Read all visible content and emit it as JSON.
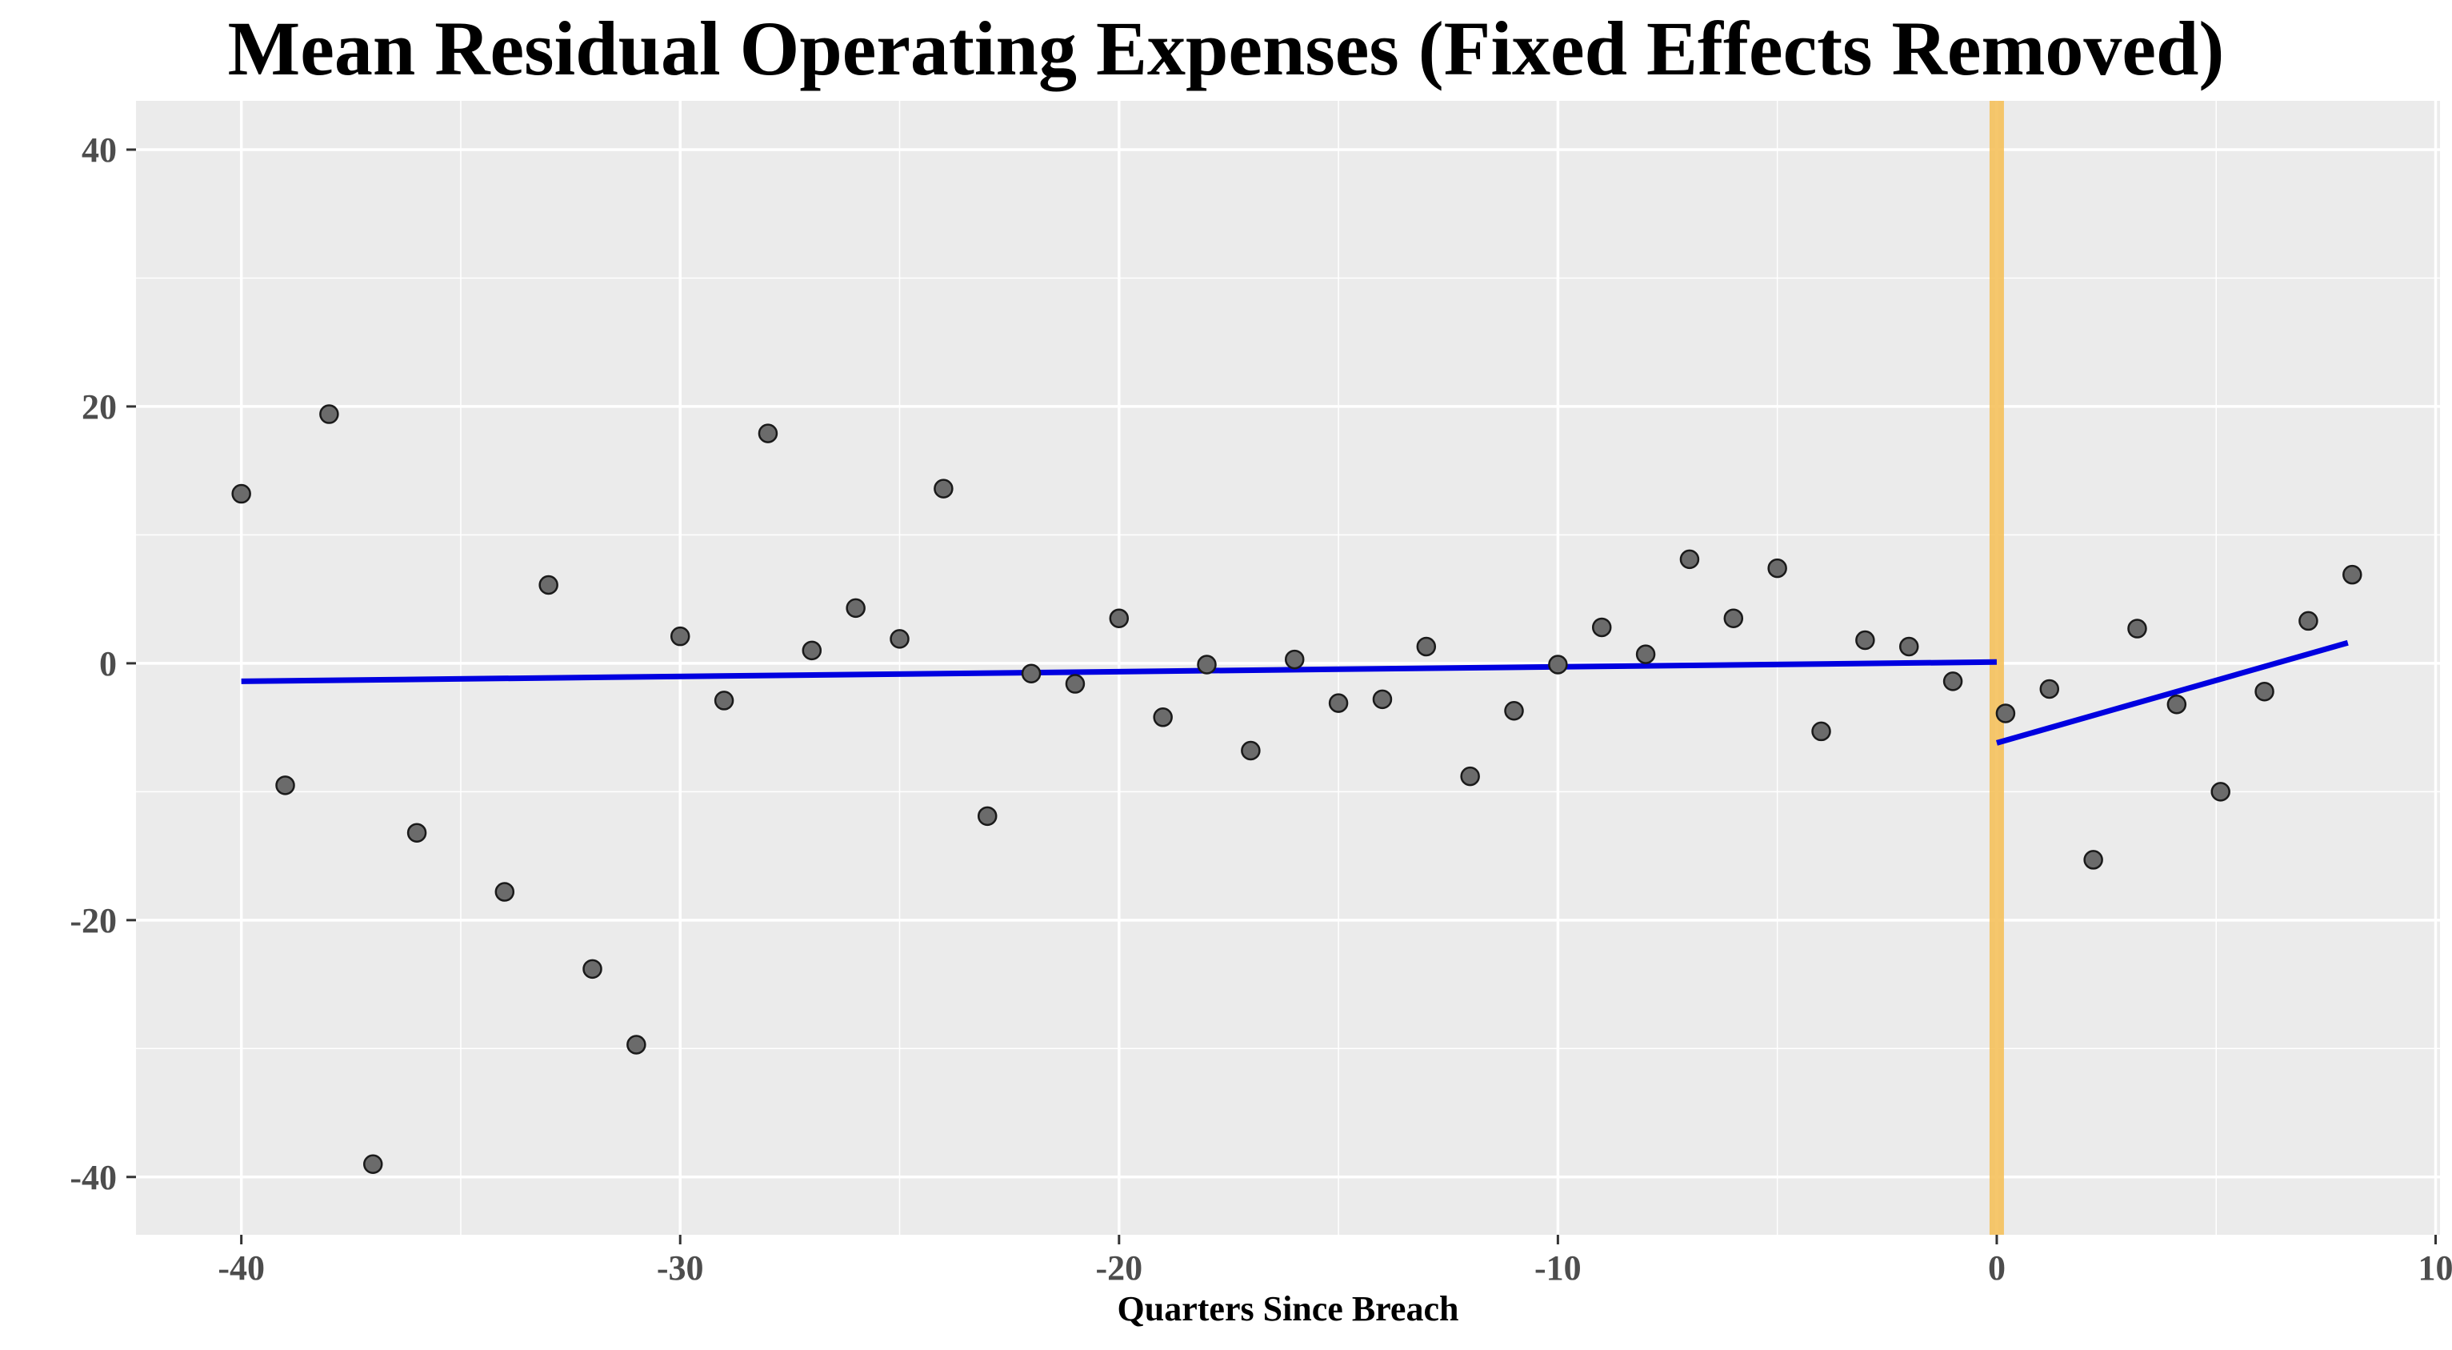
{
  "chart_data": {
    "type": "scatter",
    "title": "Mean Residual Operating Expenses (Fixed Effects Removed)",
    "xlabel": "Quarters Since Breach",
    "ylabel": "",
    "xlim": [
      -42.4,
      10.1
    ],
    "ylim": [
      -44.5,
      43.8
    ],
    "x_ticks": [
      -40,
      -30,
      -20,
      -10,
      0,
      10
    ],
    "x_tick_labels": [
      "-40",
      "-30",
      "-20",
      "-10",
      "0",
      "10"
    ],
    "y_ticks": [
      -40,
      -20,
      0,
      20,
      40
    ],
    "y_tick_labels": [
      "-40",
      "-20",
      "0",
      "20",
      "40"
    ],
    "grid": true,
    "legend": "none",
    "background_color": "#ebebeb",
    "point_color": "#6b6b6b",
    "fit_line_color": "#0000e0",
    "breach_marker_color": "#f5c15c",
    "breach_x": 0,
    "points": [
      {
        "x": -40,
        "y": 13.2
      },
      {
        "x": -39,
        "y": -9.5
      },
      {
        "x": -38,
        "y": 19.4
      },
      {
        "x": -37,
        "y": -39.0
      },
      {
        "x": -36,
        "y": -13.2
      },
      {
        "x": -34,
        "y": -17.8
      },
      {
        "x": -33,
        "y": 6.1
      },
      {
        "x": -32,
        "y": -23.8
      },
      {
        "x": -31,
        "y": -29.7
      },
      {
        "x": -30,
        "y": 2.1
      },
      {
        "x": -29,
        "y": -2.9
      },
      {
        "x": -28,
        "y": 17.9
      },
      {
        "x": -27,
        "y": 1.0
      },
      {
        "x": -26,
        "y": 4.3
      },
      {
        "x": -25,
        "y": 1.9
      },
      {
        "x": -24,
        "y": 13.6
      },
      {
        "x": -23,
        "y": -11.9
      },
      {
        "x": -22,
        "y": -0.8
      },
      {
        "x": -21,
        "y": -1.6
      },
      {
        "x": -20,
        "y": 3.5
      },
      {
        "x": -19,
        "y": -4.2
      },
      {
        "x": -18,
        "y": -0.1
      },
      {
        "x": -17,
        "y": -6.8
      },
      {
        "x": -16,
        "y": 0.3
      },
      {
        "x": -15,
        "y": -3.1
      },
      {
        "x": -14,
        "y": -2.8
      },
      {
        "x": -13,
        "y": 1.3
      },
      {
        "x": -12,
        "y": -8.8
      },
      {
        "x": -11,
        "y": -3.7
      },
      {
        "x": -10,
        "y": -0.1
      },
      {
        "x": -9,
        "y": 2.8
      },
      {
        "x": -8,
        "y": 0.7
      },
      {
        "x": -7,
        "y": 8.1
      },
      {
        "x": -6,
        "y": 3.5
      },
      {
        "x": -5,
        "y": 7.4
      },
      {
        "x": -4,
        "y": -5.3
      },
      {
        "x": -3,
        "y": 1.8
      },
      {
        "x": -2,
        "y": 1.3
      },
      {
        "x": -1,
        "y": -1.4
      },
      {
        "x": 0.2,
        "y": -3.9
      },
      {
        "x": 1.2,
        "y": -2.0
      },
      {
        "x": 2.2,
        "y": -15.3
      },
      {
        "x": 3.2,
        "y": 2.7
      },
      {
        "x": 4.1,
        "y": -3.2
      },
      {
        "x": 5.1,
        "y": -10.0
      },
      {
        "x": 6.1,
        "y": -2.2
      },
      {
        "x": 7.1,
        "y": 3.3
      },
      {
        "x": 8.1,
        "y": 6.9
      }
    ],
    "fit_lines": [
      {
        "x": [
          -40,
          0
        ],
        "y": [
          -1.4,
          0.1
        ]
      },
      {
        "x": [
          0,
          8
        ],
        "y": [
          -6.2,
          1.6
        ]
      }
    ]
  }
}
